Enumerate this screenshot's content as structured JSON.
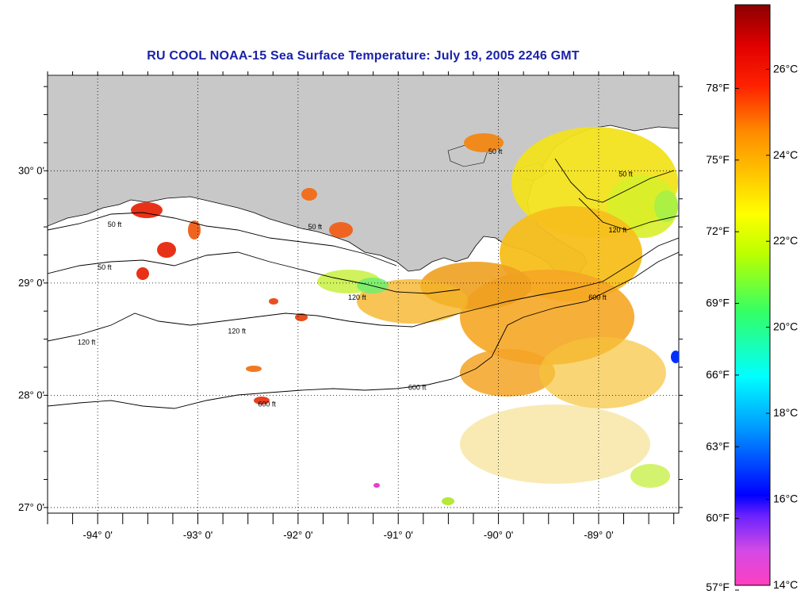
{
  "title": "RU COOL  NOAA-15  Sea Surface Temperature:  July 19, 2005 2246 GMT",
  "map": {
    "lon_range": [
      -94.5,
      -88.2
    ],
    "lat_range": [
      26.95,
      30.85
    ],
    "lon_ticks": [
      {
        "value": -94,
        "label": "-94° 0'"
      },
      {
        "value": -93,
        "label": "-93° 0'"
      },
      {
        "value": -92,
        "label": "-92° 0'"
      },
      {
        "value": -91,
        "label": "-91° 0'"
      },
      {
        "value": -90,
        "label": "-90° 0'"
      },
      {
        "value": -89,
        "label": "-89° 0'"
      }
    ],
    "lat_ticks": [
      {
        "value": 30,
        "label": "30° 0'"
      },
      {
        "value": 29,
        "label": "29° 0'"
      },
      {
        "value": 28,
        "label": "28° 0'"
      },
      {
        "value": 27,
        "label": "27° 0'"
      }
    ],
    "contour_labels": [
      {
        "lon": -93.9,
        "lat": 29.5,
        "text": "50 ft"
      },
      {
        "lon": -94.0,
        "lat": 29.12,
        "text": "50 ft"
      },
      {
        "lon": -91.9,
        "lat": 29.48,
        "text": "50 ft"
      },
      {
        "lon": -90.1,
        "lat": 30.15,
        "text": "50 ft"
      },
      {
        "lon": -88.8,
        "lat": 29.95,
        "text": "50 ft"
      },
      {
        "lon": -94.2,
        "lat": 28.45,
        "text": "120 ft"
      },
      {
        "lon": -92.7,
        "lat": 28.55,
        "text": "120 ft"
      },
      {
        "lon": -91.5,
        "lat": 28.85,
        "text": "120 ft"
      },
      {
        "lon": -88.9,
        "lat": 29.45,
        "text": "120 ft"
      },
      {
        "lon": -92.4,
        "lat": 27.9,
        "text": "600 ft"
      },
      {
        "lon": -90.9,
        "lat": 28.05,
        "text": "600 ft"
      },
      {
        "lon": -89.1,
        "lat": 28.85,
        "text": "600 ft"
      }
    ],
    "colors": {
      "land": "#c8c8c8",
      "no_data": "#ffffff",
      "contour": "#000000"
    }
  },
  "colorbar": {
    "range_c": [
      14,
      27.5
    ],
    "f_labels": [
      "78°F",
      "75°F",
      "72°F",
      "69°F",
      "66°F",
      "63°F",
      "60°F",
      "57°F"
    ],
    "f_values": [
      78,
      75,
      72,
      69,
      66,
      63,
      60,
      57
    ],
    "c_labels": [
      "26°C",
      "24°C",
      "22°C",
      "20°C",
      "18°C",
      "16°C",
      "14°C"
    ],
    "c_values": [
      26,
      24,
      22,
      20,
      18,
      16,
      14
    ]
  }
}
